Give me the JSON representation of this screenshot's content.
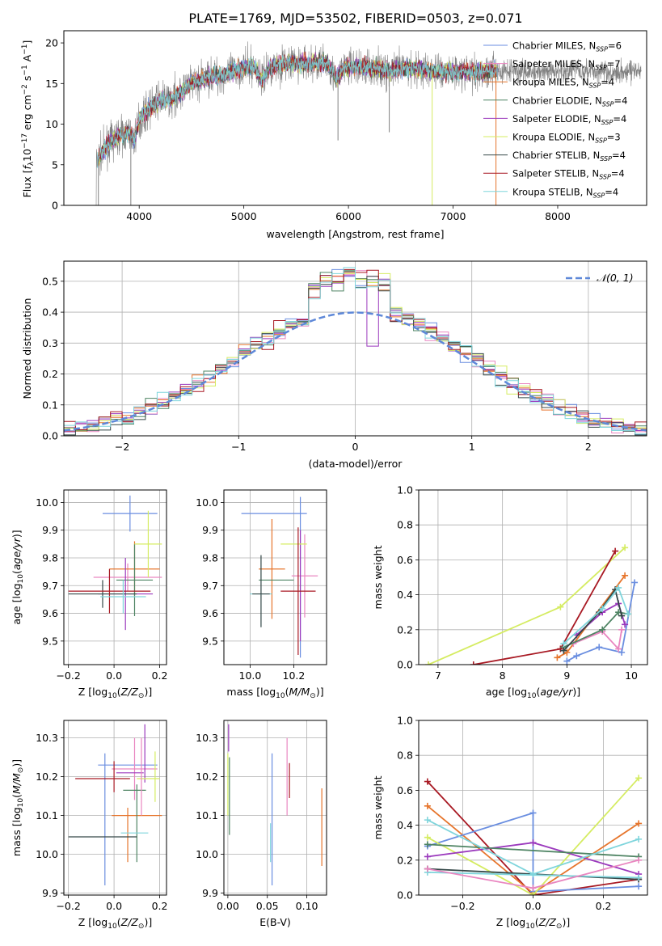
{
  "figure_title": "PLATE=1769, MJD=53502, FIBERID=0503, z=0.071",
  "colors": {
    "chabrier_miles": "#6a8ee0",
    "salpeter_miles": "#e986c0",
    "kroupa_miles": "#e6752c",
    "chabrier_elodie": "#4e8463",
    "salpeter_elodie": "#9b39bd",
    "kroupa_elodie": "#d5ec62",
    "chabrier_stelib": "#354848",
    "salpeter_stelib": "#a81923",
    "kroupa_stelib": "#7fd5dc",
    "data": "#808080",
    "normal": "#5e88d8"
  },
  "chart_data": [
    {
      "type": "line",
      "title": "PLATE=1769, MJD=53502, FIBERID=0503, z=0.071",
      "xlabel": "wavelength [Angstrom, rest frame]",
      "ylabel_parts": [
        "Flux [",
        "f",
        "λ",
        "10",
        "−17",
        " erg cm",
        "−2",
        " s",
        "−1",
        " A",
        "−1",
        "]"
      ],
      "xlim": [
        3280,
        8850
      ],
      "ylim": [
        0,
        21.5
      ],
      "xticks": [
        4000,
        5000,
        6000,
        7000,
        8000
      ],
      "yticks": [
        0,
        5,
        10,
        15,
        20
      ],
      "grid": false,
      "legend_position": "upper right",
      "legend": [
        {
          "main": "Chabrier MILES, N",
          "sub": "SSP",
          "tail": "=6",
          "color_key": "chabrier_miles"
        },
        {
          "main": "Salpeter MILES, N",
          "sub": "SSP",
          "tail": "=7",
          "color_key": "salpeter_miles"
        },
        {
          "main": "Kroupa MILES, N",
          "sub": "SSP",
          "tail": "=4",
          "color_key": "kroupa_miles"
        },
        {
          "main": "Chabrier ELODIE, N",
          "sub": "SSP",
          "tail": "=4",
          "color_key": "chabrier_elodie"
        },
        {
          "main": "Salpeter ELODIE, N",
          "sub": "SSP",
          "tail": "=4",
          "color_key": "salpeter_elodie"
        },
        {
          "main": "Kroupa ELODIE, N",
          "sub": "SSP",
          "tail": "=3",
          "color_key": "kroupa_elodie"
        },
        {
          "main": "Chabrier STELIB, N",
          "sub": "SSP",
          "tail": "=4",
          "color_key": "chabrier_stelib"
        },
        {
          "main": "Salpeter STELIB, N",
          "sub": "SSP",
          "tail": "=4",
          "color_key": "salpeter_stelib"
        },
        {
          "main": "Kroupa STELIB, N",
          "sub": "SSP",
          "tail": "=4",
          "color_key": "kroupa_stelib"
        }
      ],
      "continuum": [
        [
          3580,
          5
        ],
        [
          3620,
          6
        ],
        [
          3700,
          7.5
        ],
        [
          3800,
          8.5
        ],
        [
          3900,
          9
        ],
        [
          3950,
          8
        ],
        [
          4000,
          10.5
        ],
        [
          4100,
          12
        ],
        [
          4200,
          13
        ],
        [
          4300,
          13
        ],
        [
          4400,
          14
        ],
        [
          4500,
          15
        ],
        [
          4600,
          15.5
        ],
        [
          4700,
          16
        ],
        [
          4800,
          16
        ],
        [
          4900,
          16.5
        ],
        [
          5000,
          17
        ],
        [
          5100,
          17
        ],
        [
          5175,
          15.5
        ],
        [
          5250,
          17
        ],
        [
          5400,
          17.5
        ],
        [
          5600,
          17.5
        ],
        [
          5800,
          17.5
        ],
        [
          5890,
          15.5
        ],
        [
          5950,
          17
        ],
        [
          6200,
          17
        ],
        [
          6400,
          16.5
        ],
        [
          6560,
          17
        ],
        [
          6800,
          16.5
        ],
        [
          7000,
          16.5
        ],
        [
          7200,
          16.5
        ],
        [
          7400,
          16.5
        ]
      ],
      "model_end": 7430,
      "data_end": 8800,
      "outliers": [
        [
          3610,
          0
        ],
        [
          3920,
          0
        ],
        [
          5900,
          8
        ],
        [
          6390,
          9
        ],
        [
          6800,
          0
        ],
        [
          7410,
          0
        ]
      ]
    },
    {
      "type": "step",
      "xlabel": "(data-model)/error",
      "ylabel": "Normed distribution",
      "xlim": [
        -2.5,
        2.5
      ],
      "ylim": [
        0,
        0.565
      ],
      "xticks": [
        -2,
        -1,
        0,
        1,
        2
      ],
      "yticks": [
        0.0,
        0.1,
        0.2,
        0.3,
        0.4,
        0.5
      ],
      "grid": true,
      "legend_position": "upper right",
      "legend": [
        {
          "label": "𝒩(0, 1)",
          "color_key": "normal",
          "style": "dashed"
        }
      ],
      "bin_width": 0.1
    },
    {
      "type": "errorbar",
      "xlabel_parts": [
        "Z [log",
        "10",
        "(",
        "Z/Z",
        "⊙",
        ")]"
      ],
      "ylabel_parts": [
        "age  [log",
        "10",
        "(",
        "age/yr",
        ")]"
      ],
      "xlim": [
        -0.22,
        0.23
      ],
      "ylim": [
        9.415,
        10.045
      ],
      "xticks": [
        -0.2,
        0.0,
        0.2
      ],
      "yticks": [
        9.5,
        9.6,
        9.7,
        9.8,
        9.9,
        10.0
      ],
      "grid": true,
      "points": [
        {
          "model": "chabrier_miles",
          "x": 0.07,
          "xerr": 0.12,
          "y": 9.96,
          "yerr": 0.065
        },
        {
          "model": "chabrier_miles",
          "x": 0.12,
          "xerr": 0.0,
          "y": 9.96,
          "yerr": 0.0
        },
        {
          "model": "salpeter_miles",
          "x": 0.06,
          "xerr": 0.15,
          "y": 9.73,
          "yerr": 0.05
        },
        {
          "model": "kroupa_miles",
          "x": 0.09,
          "xerr": 0.11,
          "y": 9.76,
          "yerr": 0.1
        },
        {
          "model": "chabrier_elodie",
          "x": 0.09,
          "xerr": 0.08,
          "y": 9.72,
          "yerr": 0.13
        },
        {
          "model": "salpeter_elodie",
          "x": 0.05,
          "xerr": 0.12,
          "y": 9.67,
          "yerr": 0.13
        },
        {
          "model": "kroupa_elodie",
          "x": 0.15,
          "xerr": 0.06,
          "y": 9.85,
          "yerr": 0.12
        },
        {
          "model": "chabrier_stelib",
          "x": -0.05,
          "xerr": 0.15,
          "y": 9.67,
          "yerr": 0.05
        },
        {
          "model": "salpeter_stelib",
          "x": -0.02,
          "xerr": 0.18,
          "y": 9.68,
          "yerr": 0.08
        },
        {
          "model": "kroupa_stelib",
          "x": 0.04,
          "xerr": 0.1,
          "y": 9.66,
          "yerr": 0.06
        }
      ]
    },
    {
      "type": "errorbar",
      "xlabel_parts": [
        "mass [log",
        "10",
        "(",
        "M/M",
        "⊙",
        ")]"
      ],
      "ylabel": "",
      "xlim": [
        9.88,
        10.35
      ],
      "ylim": [
        9.415,
        10.045
      ],
      "xticks": [
        10.0,
        10.2
      ],
      "yticks": [
        9.5,
        9.6,
        9.7,
        9.8,
        9.9,
        10.0
      ],
      "grid": true,
      "points": [
        {
          "model": "chabrier_miles",
          "x": 10.11,
          "xerr": 0.15,
          "y": 9.96,
          "yerr": 0.0
        },
        {
          "model": "chabrier_miles",
          "x": 10.23,
          "xerr": 0.0,
          "y": 9.73,
          "yerr": 0.29
        },
        {
          "model": "salpeter_miles",
          "x": 10.25,
          "xerr": 0.06,
          "y": 9.735,
          "yerr": 0.15
        },
        {
          "model": "kroupa_miles",
          "x": 10.1,
          "xerr": 0.06,
          "y": 9.76,
          "yerr": 0.18
        },
        {
          "model": "chabrier_elodie",
          "x": 10.12,
          "xerr": 0.08,
          "y": 9.72,
          "yerr": 0.0
        },
        {
          "model": "salpeter_elodie",
          "x": 10.23,
          "xerr": 0.0,
          "y": 9.7,
          "yerr": 0.2
        },
        {
          "model": "kroupa_elodie",
          "x": 10.2,
          "xerr": 0.06,
          "y": 9.85,
          "yerr": 0.0
        },
        {
          "model": "chabrier_stelib",
          "x": 10.05,
          "xerr": 0.0,
          "y": 9.68,
          "yerr": 0.13
        },
        {
          "model": "salpeter_stelib",
          "x": 10.22,
          "xerr": 0.08,
          "y": 9.68,
          "yerr": 0.23
        },
        {
          "model": "kroupa_stelib",
          "x": 10.05,
          "xerr": 0.05,
          "y": 9.67,
          "yerr": 0.0
        },
        {
          "model": "chabrier_stelib",
          "x": 10.05,
          "xerr": 0.04,
          "y": 9.67,
          "yerr": 0.0
        }
      ]
    },
    {
      "type": "line",
      "xlabel_parts": [
        "age  [log",
        "10",
        "(",
        "age/yr",
        ")]"
      ],
      "ylabel": "mass weight",
      "xlim": [
        6.7,
        10.25
      ],
      "ylim": [
        0,
        1.0
      ],
      "xticks": [
        7,
        8,
        9,
        10
      ],
      "yticks": [
        0.0,
        0.2,
        0.4,
        0.6,
        0.8,
        1.0
      ],
      "grid": true,
      "series": [
        {
          "model": "kroupa_elodie",
          "x": [
            6.85,
            8.9,
            9.9
          ],
          "y": [
            0.0,
            0.33,
            0.67
          ]
        },
        {
          "model": "salpeter_stelib",
          "x": [
            7.55,
            8.9,
            9.75
          ],
          "y": [
            0.0,
            0.09,
            0.65
          ]
        },
        {
          "model": "kroupa_miles",
          "x": [
            8.85,
            9.0,
            9.9
          ],
          "y": [
            0.04,
            0.07,
            0.51
          ]
        },
        {
          "model": "chabrier_miles",
          "x": [
            9.0,
            9.15,
            9.5,
            9.85,
            10.05
          ],
          "y": [
            0.02,
            0.05,
            0.1,
            0.07,
            0.47
          ]
        },
        {
          "model": "salpeter_miles",
          "x": [
            9.1,
            9.55,
            9.8,
            9.85
          ],
          "y": [
            0.12,
            0.19,
            0.09,
            0.2
          ]
        },
        {
          "model": "salpeter_elodie",
          "x": [
            9.15,
            9.55,
            9.8,
            9.9
          ],
          "y": [
            0.17,
            0.3,
            0.35,
            0.23
          ]
        },
        {
          "model": "chabrier_elodie",
          "x": [
            8.95,
            9.55,
            9.8,
            9.95
          ],
          "y": [
            0.1,
            0.2,
            0.3,
            0.29
          ]
        },
        {
          "model": "chabrier_stelib",
          "x": [
            8.95,
            9.5,
            9.75,
            9.85
          ],
          "y": [
            0.08,
            0.3,
            0.43,
            0.28
          ]
        },
        {
          "model": "kroupa_stelib",
          "x": [
            8.95,
            9.55,
            9.8,
            9.95
          ],
          "y": [
            0.12,
            0.32,
            0.44,
            0.29
          ]
        }
      ]
    },
    {
      "type": "errorbar",
      "xlabel_parts": [
        "Z [log",
        "10",
        "(",
        "Z/Z",
        "⊙",
        ")]"
      ],
      "ylabel_parts": [
        "mass [log",
        "10",
        "(",
        "M/M",
        "⊙",
        ")]"
      ],
      "xlim": [
        -0.22,
        0.23
      ],
      "ylim": [
        9.895,
        10.345
      ],
      "xticks": [
        -0.2,
        0.0,
        0.2
      ],
      "yticks": [
        9.9,
        10.0,
        10.1,
        10.2,
        10.3
      ],
      "grid": true,
      "points": [
        {
          "model": "chabrier_miles",
          "x": 0.06,
          "xerr": 0.13,
          "y": 10.23,
          "yerr": 0.0
        },
        {
          "model": "chabrier_miles",
          "x": -0.04,
          "xerr": 0.0,
          "y": 10.09,
          "yerr": 0.17
        },
        {
          "model": "salpeter_miles",
          "x": 0.09,
          "xerr": 0.1,
          "y": 10.22,
          "yerr": 0.08
        },
        {
          "model": "kroupa_miles",
          "x": 0.1,
          "xerr": 0.11,
          "y": 10.1,
          "yerr": 0.0
        },
        {
          "model": "kroupa_miles",
          "x": 0.06,
          "xerr": 0.0,
          "y": 10.05,
          "yerr": 0.07
        },
        {
          "model": "chabrier_elodie",
          "x": 0.09,
          "xerr": 0.05,
          "y": 10.165,
          "yerr": 0.0
        },
        {
          "model": "chabrier_elodie",
          "x": 0.1,
          "xerr": 0.0,
          "y": 10.08,
          "yerr": 0.1
        },
        {
          "model": "salpeter_elodie",
          "x": 0.07,
          "xerr": 0.06,
          "y": 10.21,
          "yerr": 0.0
        },
        {
          "model": "salpeter_elodie",
          "x": 0.135,
          "xerr": 0.0,
          "y": 10.26,
          "yerr": 0.075
        },
        {
          "model": "kroupa_elodie",
          "x": 0.15,
          "xerr": 0.05,
          "y": 10.195,
          "yerr": 0.0
        },
        {
          "model": "kroupa_elodie",
          "x": 0.18,
          "xerr": 0.0,
          "y": 10.2,
          "yerr": 0.065
        },
        {
          "model": "chabrier_stelib",
          "x": -0.05,
          "xerr": 0.15,
          "y": 10.045,
          "yerr": 0.0
        },
        {
          "model": "salpeter_stelib",
          "x": -0.05,
          "xerr": 0.12,
          "y": 10.195,
          "yerr": 0.0
        },
        {
          "model": "salpeter_stelib",
          "x": 0.0,
          "xerr": 0.0,
          "y": 10.2,
          "yerr": 0.04
        },
        {
          "model": "kroupa_stelib",
          "x": 0.09,
          "xerr": 0.06,
          "y": 10.055,
          "yerr": 0.0
        },
        {
          "model": "salpeter_miles",
          "x": 0.12,
          "xerr": 0.0,
          "y": 10.2,
          "yerr": 0.1
        }
      ]
    },
    {
      "type": "errorbar",
      "xlabel": "E(B-V)",
      "ylabel": "",
      "xlim": [
        -0.005,
        0.125
      ],
      "ylim": [
        9.895,
        10.345
      ],
      "xticks": [
        0.0,
        0.05,
        0.1
      ],
      "yticks": [
        9.9,
        10.0,
        10.1,
        10.2,
        10.3
      ],
      "grid": true,
      "points": [
        {
          "model": "salpeter_elodie",
          "x": 0.001,
          "xerr": 0.0,
          "y": 10.3,
          "yerr": 0.035
        },
        {
          "model": "chabrier_elodie",
          "x": 0.002,
          "xerr": 0.0,
          "y": 10.15,
          "yerr": 0.1
        },
        {
          "model": "kroupa_elodie",
          "x": 0.0,
          "xerr": 0.0,
          "y": 10.18,
          "yerr": 0.08
        },
        {
          "model": "chabrier_miles",
          "x": 0.056,
          "xerr": 0.0,
          "y": 10.09,
          "yerr": 0.17
        },
        {
          "model": "kroupa_stelib",
          "x": 0.054,
          "xerr": 0.0,
          "y": 10.03,
          "yerr": 0.05
        },
        {
          "model": "salpeter_miles",
          "x": 0.075,
          "xerr": 0.0,
          "y": 10.2,
          "yerr": 0.1
        },
        {
          "model": "salpeter_stelib",
          "x": 0.078,
          "xerr": 0.0,
          "y": 10.19,
          "yerr": 0.045
        },
        {
          "model": "kroupa_miles",
          "x": 0.119,
          "xerr": 0.0,
          "y": 10.07,
          "yerr": 0.1
        }
      ]
    },
    {
      "type": "line",
      "xlabel_parts": [
        "Z [log",
        "10",
        "(",
        "Z/Z",
        "⊙",
        ")]"
      ],
      "ylabel": "mass weight",
      "xlim": [
        -0.325,
        0.325
      ],
      "ylim": [
        0,
        1.0
      ],
      "xticks": [
        -0.2,
        0.0,
        0.2
      ],
      "yticks": [
        0.0,
        0.2,
        0.4,
        0.6,
        0.8,
        1.0
      ],
      "grid": true,
      "series": [
        {
          "model": "salpeter_stelib",
          "x": [
            -0.3,
            0.0,
            0.3
          ],
          "y": [
            0.65,
            0.0,
            0.09
          ]
        },
        {
          "model": "kroupa_miles",
          "x": [
            -0.3,
            0.0,
            0.3
          ],
          "y": [
            0.51,
            0.01,
            0.41
          ]
        },
        {
          "model": "chabrier_miles",
          "x": [
            -0.3,
            0.0,
            0.0,
            0.3
          ],
          "y": [
            0.28,
            0.47,
            0.02,
            0.05
          ]
        },
        {
          "model": "kroupa_elodie",
          "x": [
            -0.3,
            0.0,
            0.3
          ],
          "y": [
            0.33,
            0.0,
            0.67
          ]
        },
        {
          "model": "salpeter_elodie",
          "x": [
            -0.3,
            0.0,
            0.3
          ],
          "y": [
            0.22,
            0.3,
            0.12
          ]
        },
        {
          "model": "chabrier_elodie",
          "x": [
            -0.3,
            0.3
          ],
          "y": [
            0.29,
            0.22
          ]
        },
        {
          "model": "chabrier_stelib",
          "x": [
            -0.3,
            0.3
          ],
          "y": [
            0.15,
            0.09
          ]
        },
        {
          "model": "kroupa_stelib",
          "x": [
            -0.3,
            0.3
          ],
          "y": [
            0.13,
            0.1
          ]
        },
        {
          "model": "salpeter_miles",
          "x": [
            -0.3,
            0.0,
            0.3
          ],
          "y": [
            0.15,
            0.04,
            0.2
          ]
        },
        {
          "model": "kroupa_stelib",
          "x": [
            -0.3,
            0.0,
            0.3
          ],
          "y": [
            0.43,
            0.12,
            0.32
          ]
        }
      ]
    }
  ]
}
